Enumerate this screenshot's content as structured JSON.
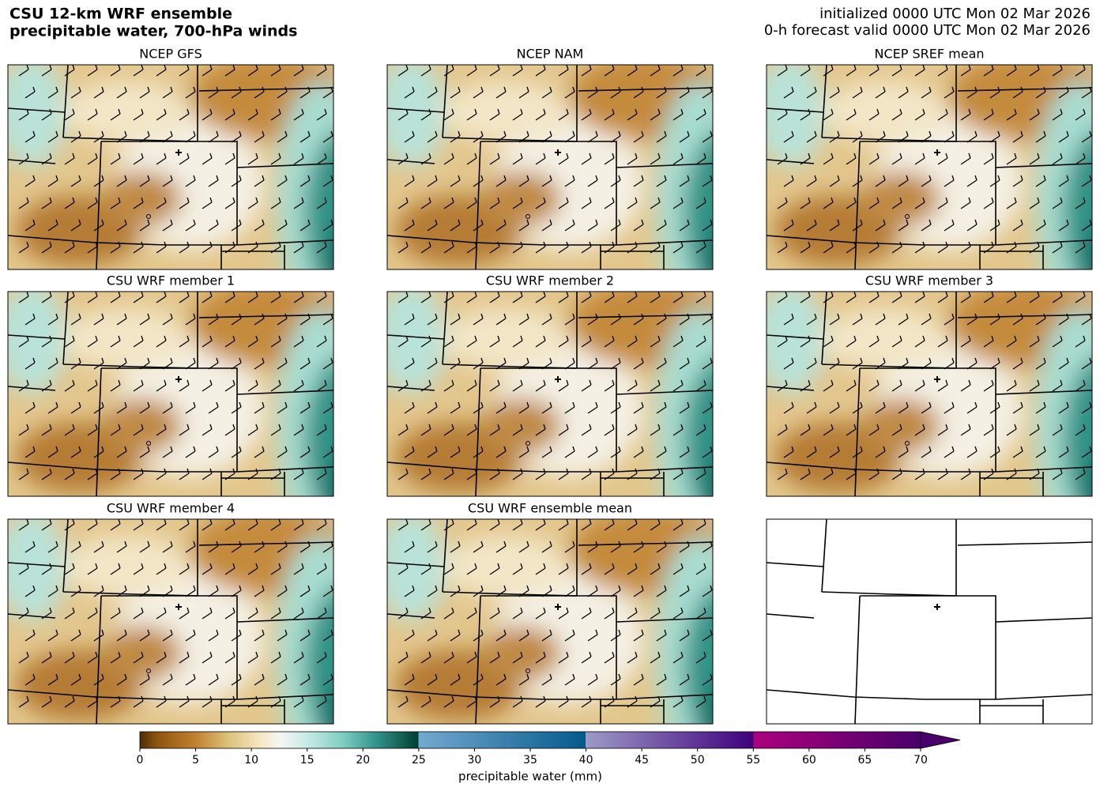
{
  "header": {
    "title_line1": "CSU 12-km WRF ensemble",
    "title_line2": "precipitable water, 700-hPa winds",
    "init": "initialized 0000 UTC Mon 02 Mar 2026",
    "valid": "0-h forecast valid 0000 UTC Mon 02 Mar 2026"
  },
  "panels": [
    {
      "title": "NCEP GFS"
    },
    {
      "title": "NCEP NAM"
    },
    {
      "title": "NCEP SREF mean"
    },
    {
      "title": "CSU WRF member 1"
    },
    {
      "title": "CSU WRF member 2"
    },
    {
      "title": "CSU WRF member 3"
    },
    {
      "title": "CSU WRF member 4"
    },
    {
      "title": "CSU WRF ensemble mean"
    }
  ],
  "colorbar": {
    "lim": [
      0,
      70
    ],
    "ticks": [
      0,
      5,
      10,
      15,
      20,
      25,
      30,
      35,
      40,
      45,
      50,
      55,
      60,
      65,
      70
    ],
    "label": "precipitable water (mm)"
  }
}
